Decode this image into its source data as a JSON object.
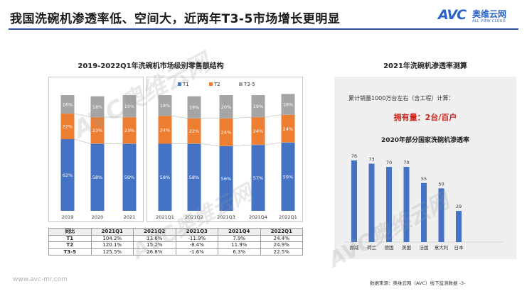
{
  "header": {
    "title": "我国洗碗机渗透率低、空间大，近两年T3-5市场增长更明显",
    "logo_mark": "AVC",
    "logo_cn": "奥维云网",
    "logo_en": "ALL VIEW CLOUD"
  },
  "watermark": {
    "text": "AVC奥维云网"
  },
  "chart_data": [
    {
      "type": "bar",
      "stacked": true,
      "percent": true,
      "title": "2019-2022Q1年洗碗机市场级别零售额结构",
      "categories": [
        "2019",
        "2020",
        "2021",
        "2021Q1",
        "2021Q2",
        "2021Q3",
        "2021Q4",
        "2022Q1"
      ],
      "series": [
        {
          "name": "T1",
          "color": "#4472c4",
          "values": [
            62,
            58,
            58,
            58,
            58,
            56,
            57,
            59
          ]
        },
        {
          "name": "T2",
          "color": "#ed7d31",
          "values": [
            22,
            23,
            23,
            24,
            22,
            24,
            24,
            24
          ]
        },
        {
          "name": "T3-5",
          "color": "#a5a5a5",
          "values": [
            16,
            18,
            19,
            18,
            19,
            20,
            19,
            18
          ]
        }
      ],
      "value_labels": {
        "T1": [
          "62%",
          "58%",
          "58%",
          "58%",
          "58%",
          "56%",
          "57%",
          "59%"
        ],
        "T2": [
          "22%",
          "23%",
          "23%",
          "24%",
          "22%",
          "24%",
          "24%",
          "24%"
        ],
        "T3-5": [
          "16%",
          "18%",
          "19%",
          "18%",
          "19%",
          "20%",
          "19%",
          "18%"
        ]
      },
      "legend_position": "top-center"
    },
    {
      "type": "table",
      "columns": [
        "同比",
        "2021Q1",
        "2021Q2",
        "2021Q3",
        "2021Q4",
        "2022Q1"
      ],
      "rows": [
        [
          "T1",
          "104.2%",
          "13.6%",
          "-11.9%",
          "7.9%",
          "24.4%"
        ],
        [
          "T2",
          "120.1%",
          "15.2%",
          "-8.4%",
          "11.9%",
          "24.9%"
        ],
        [
          "T3-5",
          "125.5%",
          "26.8%",
          "-1.6%",
          "6.3%",
          "22.5%"
        ]
      ]
    },
    {
      "type": "bar",
      "title": "2020年部分国家洗碗机渗透率",
      "categories": [
        "挪威",
        "荷兰",
        "德国",
        "美国",
        "法国",
        "意大利",
        "日本"
      ],
      "values": [
        76,
        73,
        70,
        70,
        55,
        50,
        29
      ],
      "color": "#4472c4"
    }
  ],
  "right_panel": {
    "title": "2021年洗碗机渗透率测算",
    "calc_note": "累计销量1000万台左右（含工程）计算：",
    "owned_label": "拥有量：2台/百户"
  },
  "footer": {
    "website": "www.avc-mr.com",
    "source": "数据来源：奥维云网（AVC）线下监测数据  -3-"
  }
}
